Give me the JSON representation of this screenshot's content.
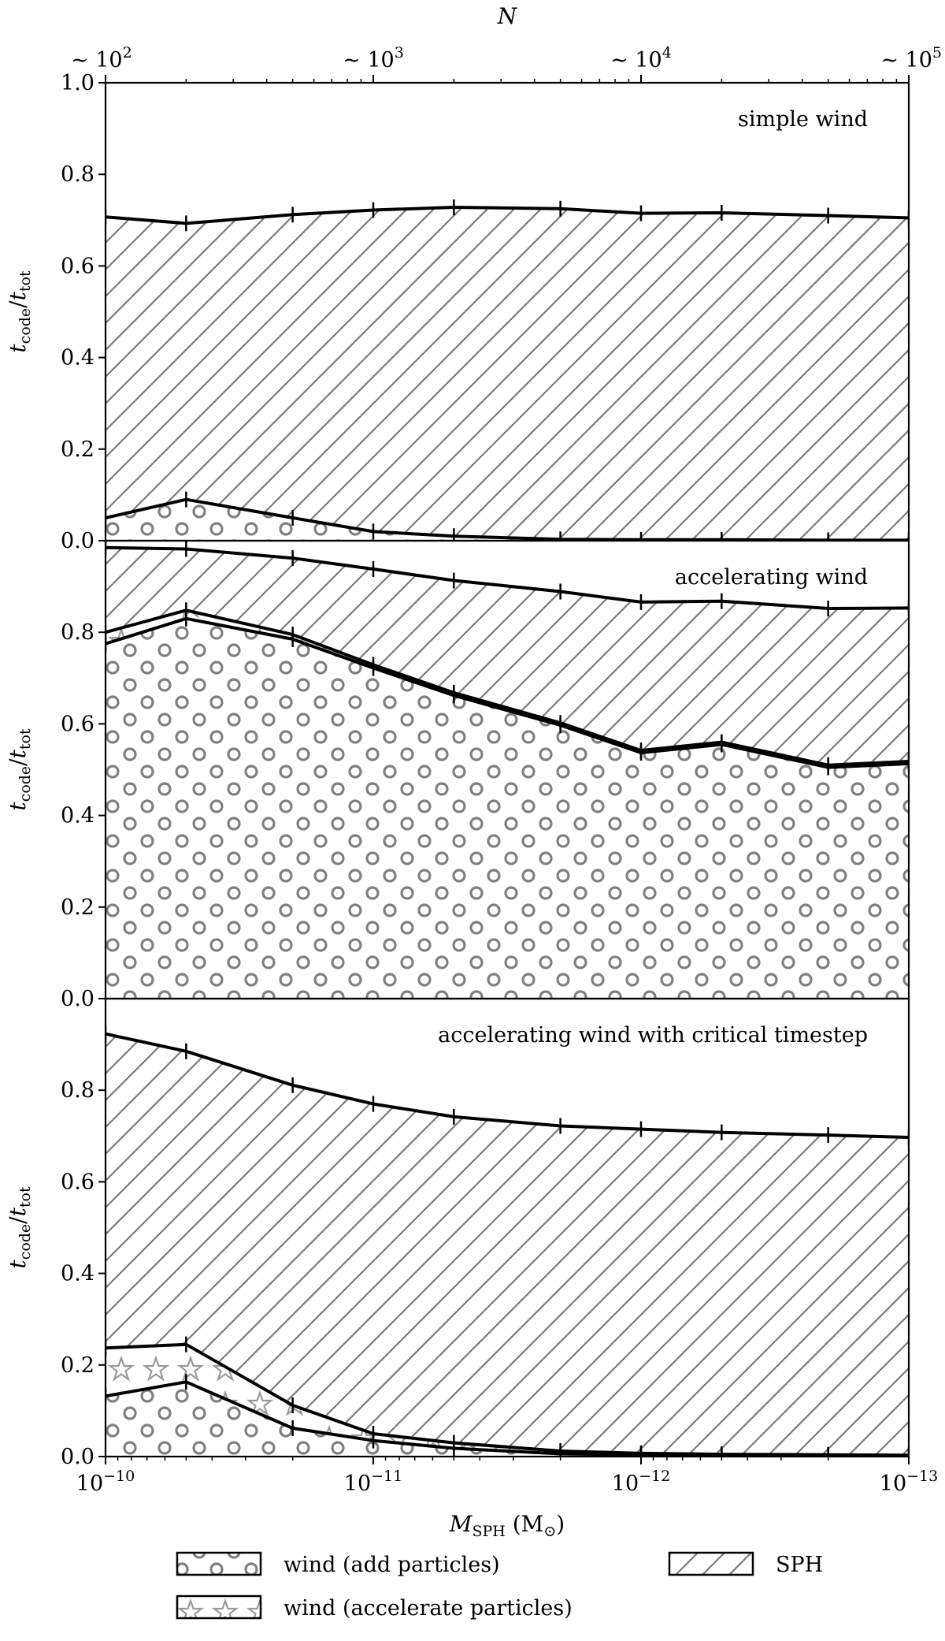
{
  "chart_data": {
    "type": "area",
    "description_free": true,
    "x_mass": [
      1e-10,
      5e-11,
      2e-11,
      1e-11,
      5e-12,
      2e-12,
      1e-12,
      5e-13,
      2e-13,
      1e-13
    ],
    "xlabel_main": "M",
    "xlabel_sub": "SPH",
    "xlabel_unit_open": " (M",
    "xlabel_unit_sub": "⊙",
    "xlabel_unit_close": ")",
    "x_ticks": [
      {
        "base": "10",
        "exp": "−10"
      },
      {
        "base": "10",
        "exp": "−11"
      },
      {
        "base": "10",
        "exp": "−12"
      },
      {
        "base": "10",
        "exp": "−13"
      }
    ],
    "top_axis": {
      "label": "N",
      "ticks": [
        {
          "prefix": "∼ ",
          "base": "10",
          "exp": "2"
        },
        {
          "prefix": "∼ ",
          "base": "10",
          "exp": "3"
        },
        {
          "prefix": "∼ ",
          "base": "10",
          "exp": "4"
        },
        {
          "prefix": "∼ ",
          "base": "10",
          "exp": "5"
        }
      ]
    },
    "ylabel": {
      "t": "t",
      "num": "code",
      "slash": "/",
      "den": "tot"
    },
    "ylim": [
      0,
      1.0
    ],
    "panels": [
      {
        "name": "simple wind",
        "yticks": [
          "0.0",
          "0.2",
          "0.4",
          "0.6",
          "0.8",
          "1.0"
        ],
        "series": [
          {
            "name": "wind (add particles)",
            "pattern": "circles",
            "values": [
              0.05,
              0.09,
              0.05,
              0.02,
              0.01,
              0.003,
              0.002,
              0.002,
              0.001,
              0.001
            ]
          },
          {
            "name": "SPH",
            "pattern": "hatch",
            "values": [
              0.707,
              0.693,
              0.712,
              0.722,
              0.728,
              0.725,
              0.715,
              0.716,
              0.71,
              0.705
            ]
          }
        ]
      },
      {
        "name": "accelerating wind",
        "yticks": [
          "0.0",
          "0.2",
          "0.4",
          "0.6",
          "0.8"
        ],
        "series": [
          {
            "name": "wind (add particles)",
            "pattern": "circles",
            "values": [
              0.775,
              0.83,
              0.785,
              0.722,
              0.662,
              0.597,
              0.537,
              0.555,
              0.505,
              0.513
            ]
          },
          {
            "name": "wind (accelerate particles)",
            "pattern": "stars",
            "values": [
              0.8,
              0.848,
              0.795,
              0.729,
              0.668,
              0.602,
              0.542,
              0.56,
              0.51,
              0.518
            ]
          },
          {
            "name": "SPH",
            "pattern": "hatch",
            "values": [
              0.985,
              0.982,
              0.962,
              0.938,
              0.913,
              0.889,
              0.866,
              0.868,
              0.852,
              0.853
            ]
          }
        ]
      },
      {
        "name": "accelerating wind with critical timestep",
        "yticks": [
          "0.0",
          "0.2",
          "0.4",
          "0.6",
          "0.8"
        ],
        "series": [
          {
            "name": "wind (add particles)",
            "pattern": "circles",
            "values": [
              0.132,
              0.163,
              0.062,
              0.035,
              0.018,
              0.006,
              0.004,
              0.003,
              0.002,
              0.001
            ]
          },
          {
            "name": "wind (accelerate particles)",
            "pattern": "stars",
            "values": [
              0.237,
              0.245,
              0.112,
              0.05,
              0.03,
              0.012,
              0.007,
              0.005,
              0.004,
              0.003
            ]
          },
          {
            "name": "SPH",
            "pattern": "hatch",
            "values": [
              0.923,
              0.885,
              0.811,
              0.77,
              0.742,
              0.722,
              0.715,
              0.708,
              0.702,
              0.697
            ]
          }
        ]
      }
    ],
    "legend": [
      {
        "label": "wind (add particles)",
        "pattern": "circles"
      },
      {
        "label": "SPH",
        "pattern": "hatch"
      },
      {
        "label": "wind (accelerate particles)",
        "pattern": "stars"
      }
    ],
    "legend_placement": "bottom"
  }
}
